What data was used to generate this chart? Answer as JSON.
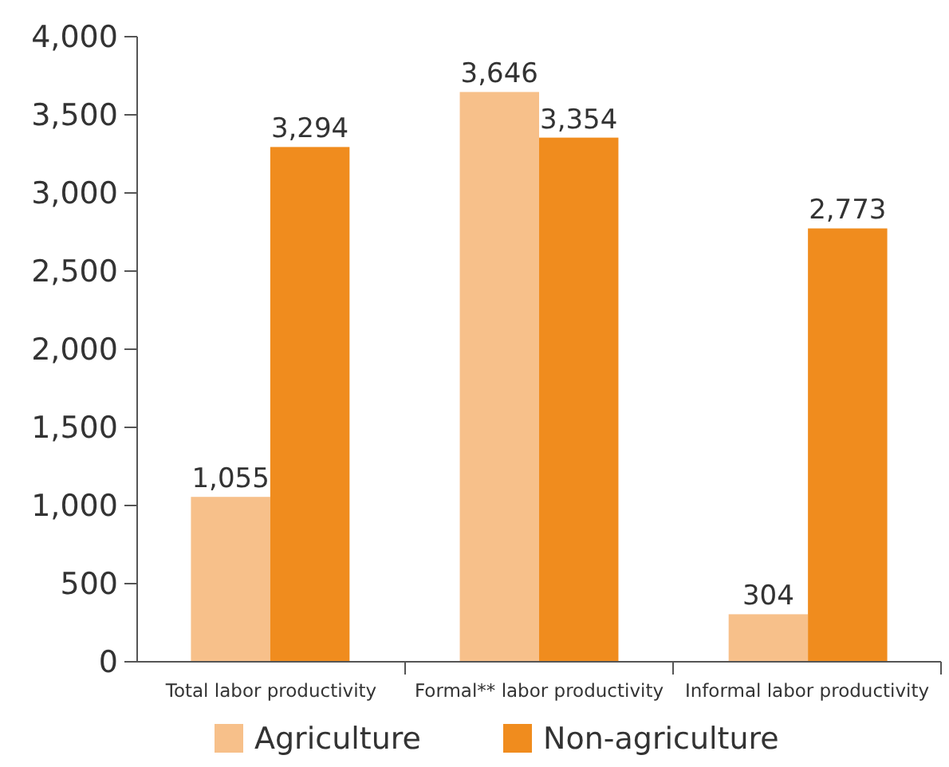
{
  "chart_data": {
    "type": "bar",
    "categories": [
      "Total labor productivity",
      "Formal** labor productivity",
      "Informal labor productivity"
    ],
    "series": [
      {
        "name": "Agriculture",
        "color": "#f7c08a",
        "values": [
          1055,
          3646,
          304
        ],
        "value_labels": [
          "1,055",
          "3,646",
          "304"
        ]
      },
      {
        "name": "Non-agriculture",
        "color": "#f08c1e",
        "values": [
          3294,
          3354,
          2773
        ],
        "value_labels": [
          "3,294",
          "3,354",
          "2,773"
        ]
      }
    ],
    "ylim": [
      0,
      4000
    ],
    "yticks": [
      0,
      {
        "value": 500,
        "label": "500"
      },
      {
        "value": 1000,
        "label": "1,000"
      },
      {
        "value": 1500,
        "label": "1,500"
      },
      {
        "value": 2000,
        "label": "2,000"
      },
      {
        "value": 2500,
        "label": "2,500"
      },
      {
        "value": 3000,
        "label": "3,000"
      },
      {
        "value": 3500,
        "label": "3,500"
      },
      {
        "value": 4000,
        "label": "4,000"
      }
    ],
    "legend": "bottom",
    "grid": false
  }
}
